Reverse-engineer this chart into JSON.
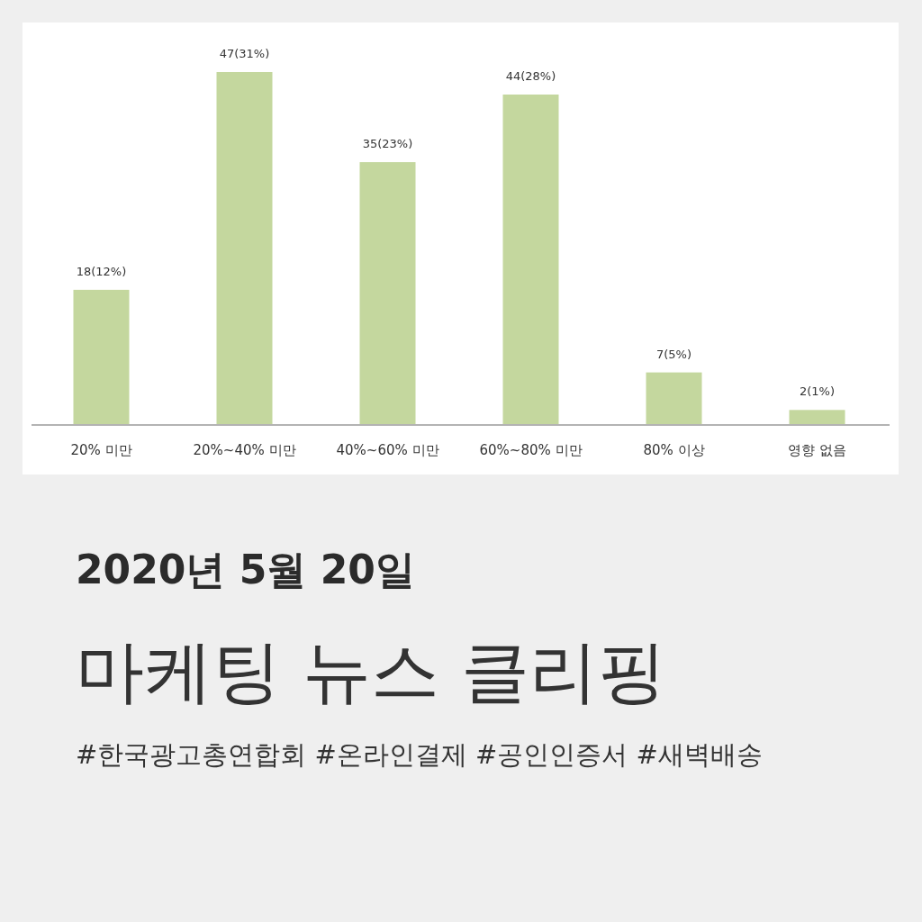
{
  "chart_data": {
    "type": "bar",
    "title": "2020년 5월 20일",
    "subtitle": "마케팅 뉴스 클리핑",
    "annotations": [
      "#한국광고총연합회 #온라인결제 #공인인증서 #새벽배송"
    ],
    "categories": [
      "20% 미만",
      "20%~40% 미만",
      "40%~60% 미만",
      "60%~80% 미만",
      "80% 이상",
      "영향 없음"
    ],
    "values": [
      18,
      47,
      35,
      44,
      7,
      2
    ],
    "color": "#c4d79e",
    "value_labels": [
      "18(12%)",
      "47(31%)",
      "35(23%)",
      "44(28%)",
      "7(5%)",
      "2(1%)"
    ]
  }
}
